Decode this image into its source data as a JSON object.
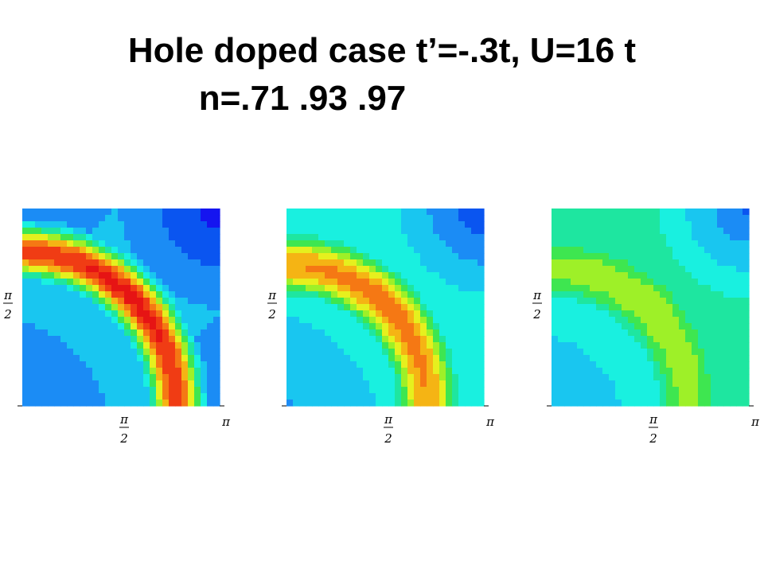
{
  "title": {
    "line1": "Hole doped case t’=-.3t, U=16 t",
    "line2": "n=.71   .93   .97"
  },
  "chart_data": [
    {
      "type": "heatmap",
      "panel": "n=.71",
      "x_range": [
        0,
        3.1416
      ],
      "y_range": [
        0,
        3.1416
      ],
      "x_ticks": [
        "π/2",
        "π"
      ],
      "y_ticks": [
        "π/2"
      ],
      "ridge_radius": 2.45,
      "ridge_width": 0.42,
      "peak_level": 1.0,
      "background_low": 0.12,
      "corner_high": 0.0
    },
    {
      "type": "heatmap",
      "panel": "n=.93",
      "x_range": [
        0,
        3.1416
      ],
      "y_range": [
        0,
        3.1416
      ],
      "x_ticks": [
        "π/2",
        "π"
      ],
      "y_ticks": [
        "π/2"
      ],
      "ridge_radius": 2.25,
      "ridge_width": 0.55,
      "peak_level": 0.85,
      "background_low": 0.2,
      "corner_high": 0.05
    },
    {
      "type": "heatmap",
      "panel": "n=.97",
      "x_range": [
        0,
        3.1416
      ],
      "y_range": [
        0,
        3.1416
      ],
      "x_ticks": [
        "π/2",
        "π"
      ],
      "y_ticks": [
        "π/2"
      ],
      "ridge_radius": 2.2,
      "ridge_width": 0.7,
      "peak_level": 0.62,
      "background_low": 0.22,
      "corner_high": 0.1
    }
  ],
  "colors": {
    "scale": [
      "#1515f0",
      "#0a55f0",
      "#1b8cf5",
      "#19c6f0",
      "#19f0e0",
      "#1ee6a0",
      "#3ee650",
      "#9ef028",
      "#e6f01e",
      "#f5b414",
      "#f57814",
      "#f03c14",
      "#e61414"
    ]
  }
}
